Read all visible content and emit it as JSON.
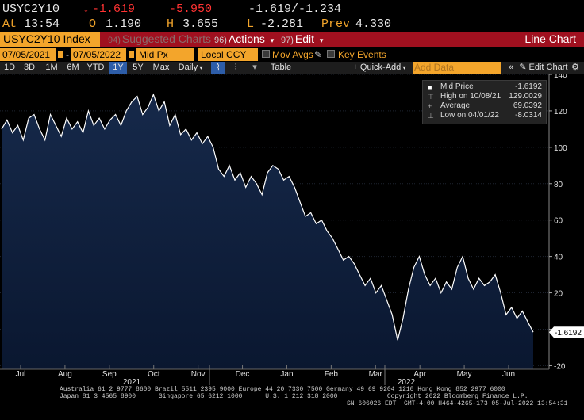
{
  "quote": {
    "ticker": "USYC2Y10",
    "arrow": "↓",
    "last": "-1.619",
    "change": "-5.950",
    "bid_ask": "-1.619/-1.234",
    "at_label": "At",
    "time": "13:54",
    "open_label": "O",
    "open": "1.190",
    "high_label": "H",
    "high": "3.655",
    "low_label": "L",
    "low": "-2.281",
    "prev_label": "Prev",
    "prev": "4.330"
  },
  "titlebar": {
    "security": "USYC2Y10 Index",
    "suggested_num": "94)",
    "suggested": "Suggested Charts",
    "actions_num": "96)",
    "actions": "Actions",
    "edit_num": "97)",
    "edit": "Edit",
    "chart_type": "Line Chart"
  },
  "controls": {
    "start_date": "07/05/2021",
    "end_date": "07/05/2022",
    "field": "Mid Px",
    "currency": "Local CCY",
    "mov_avgs": "Mov Avgs",
    "key_events": "Key Events"
  },
  "toolbar": {
    "periods": [
      "1D",
      "3D",
      "1M",
      "6M",
      "YTD",
      "1Y",
      "5Y",
      "Max"
    ],
    "selected_period": "1Y",
    "frequency": "Daily",
    "table": "Table",
    "quick_add": "+ Quick-Add",
    "add_data_placeholder": "Add Data",
    "edit_chart": "Edit Chart"
  },
  "legend": {
    "rows": [
      {
        "icon": "■",
        "name": "Mid Price",
        "value": "-1.6192"
      },
      {
        "icon": "⊤",
        "name": "High on 10/08/21",
        "value": "129.0029"
      },
      {
        "icon": "+",
        "name": "Average",
        "value": "69.0392"
      },
      {
        "icon": "⊥",
        "name": "Low on 04/01/22",
        "value": "-8.0314"
      }
    ]
  },
  "chart_data": {
    "type": "area",
    "title": "",
    "ylim": [
      -22,
      140
    ],
    "y_ticks": [
      "140",
      "120",
      "100",
      "80",
      "60",
      "40",
      "20",
      "0",
      "-20"
    ],
    "x_tick_labels": [
      "Jul",
      "Aug",
      "Sep",
      "Oct",
      "Nov",
      "Dec",
      "Jan",
      "Feb",
      "Mar",
      "Apr",
      "May",
      "Jun"
    ],
    "x_year_labels": [
      "2021",
      "2022"
    ],
    "last_value_label": "-1.6192",
    "series": [
      {
        "name": "Mid Price",
        "values": [
          110,
          115,
          108,
          112,
          104,
          116,
          118,
          110,
          104,
          118,
          112,
          106,
          116,
          110,
          114,
          108,
          120,
          112,
          116,
          110,
          115,
          118,
          112,
          120,
          125,
          128,
          118,
          122,
          129,
          120,
          125,
          112,
          118,
          107,
          110,
          104,
          108,
          102,
          106,
          100,
          88,
          84,
          90,
          82,
          86,
          78,
          84,
          80,
          74,
          86,
          90,
          88,
          82,
          84,
          78,
          70,
          62,
          64,
          58,
          60,
          54,
          50,
          44,
          38,
          40,
          36,
          30,
          24,
          28,
          20,
          24,
          16,
          8,
          -6,
          6,
          22,
          34,
          40,
          30,
          24,
          28,
          20,
          26,
          22,
          34,
          40,
          28,
          22,
          28,
          24,
          26,
          30,
          20,
          8,
          12,
          6,
          10,
          4,
          -1.6192
        ]
      }
    ]
  },
  "footer": {
    "line1": "Australia 61 2 9777 8600 Brazil 5511 2395 9000 Europe 44 20 7330 7500 Germany 49 69 9204 1210 Hong Kong 852 2977 6000",
    "line2": "Japan 81 3 4565 8900      Singapore 65 6212 1000      U.S. 1 212 318 2000             Copyright 2022 Bloomberg Finance L.P.",
    "line3": "SN 606026 EDT  GMT-4:00 H464-4265-173 05-Jul-2022 13:54:31"
  }
}
